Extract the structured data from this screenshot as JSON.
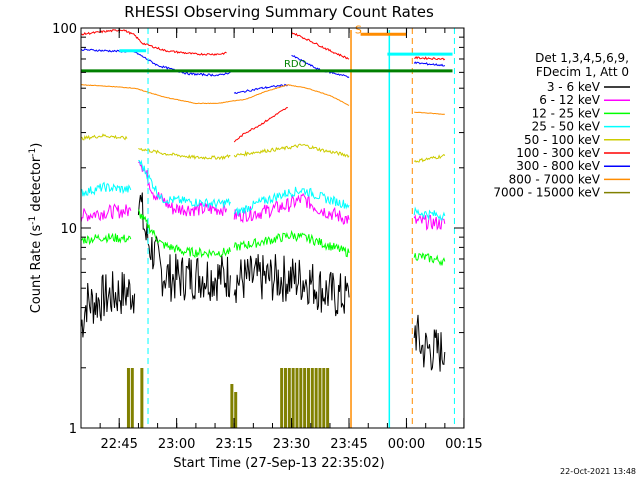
{
  "chart_data": {
    "type": "line",
    "title": "RHESSI Observing Summary Count Rates",
    "xlabel": "Start Time (27-Sep-13 22:35:02)",
    "ylabel_main": "Count Rate (s",
    "ylabel_sup": "-1",
    "ylabel_end": " detector",
    "ylabel_sup2": "-1",
    "ylabel_close": ")",
    "yscale": "log",
    "ylim": [
      1,
      100
    ],
    "xlim": [
      "22:35:02",
      "00:15:00"
    ],
    "x_ticks": [
      {
        "t": "22:45",
        "m": 9.97
      },
      {
        "t": "23:00",
        "m": 24.97
      },
      {
        "t": "23:15",
        "m": 39.97
      },
      {
        "t": "23:30",
        "m": 54.97
      },
      {
        "t": "23:45",
        "m": 69.97
      },
      {
        "t": "00:00",
        "m": 84.97
      },
      {
        "t": "00:15",
        "m": 99.97
      }
    ],
    "y_ticks": [
      {
        "label": "1",
        "v": 1
      },
      {
        "label": "10",
        "v": 10
      },
      {
        "label": "100",
        "v": 100
      }
    ],
    "legend_header_1": "Det 1,3,4,5,6,9,",
    "legend_header_2": "FDecim 1, Att 0",
    "legend_position": "right",
    "series": [
      {
        "name": "3 - 6 keV",
        "color": "#000000",
        "noise": 0.35,
        "points": [
          [
            0,
            3.2
          ],
          [
            1.5,
            4.3
          ],
          [
            3,
            4.2
          ],
          [
            6,
            4.5
          ],
          [
            10,
            4.7
          ],
          [
            13,
            4.8
          ],
          [
            14,
            4.7
          ],
          [
            14.5,
            null
          ],
          [
            15,
            15
          ],
          [
            17,
            9
          ],
          [
            19,
            7.5
          ],
          [
            21,
            6
          ],
          [
            24,
            5.6
          ],
          [
            30,
            5.8
          ],
          [
            36,
            5.7
          ],
          [
            39,
            5.8
          ],
          [
            39.5,
            null
          ],
          [
            40,
            5.5
          ],
          [
            46,
            5.6
          ],
          [
            54,
            5.6
          ],
          [
            59,
            5.5
          ],
          [
            63,
            4.9
          ],
          [
            66,
            4.6
          ],
          [
            70,
            4.5
          ],
          [
            70.5,
            null
          ],
          [
            76,
            null
          ],
          [
            87,
            3.2
          ],
          [
            89,
            2.5
          ],
          [
            95,
            2.4
          ],
          [
            97.3,
            null
          ]
        ]
      },
      {
        "name": "6 - 12 keV",
        "color": "#ff00ff",
        "noise": 0.16,
        "points": [
          [
            0,
            11.5
          ],
          [
            6,
            12
          ],
          [
            13,
            12.2
          ],
          [
            14.5,
            null
          ],
          [
            15,
            23
          ],
          [
            19,
            15
          ],
          [
            24,
            12.5
          ],
          [
            31,
            12.4
          ],
          [
            38,
            12.5
          ],
          [
            39.5,
            null
          ],
          [
            40,
            11.5
          ],
          [
            47,
            12
          ],
          [
            54,
            13
          ],
          [
            58,
            14
          ],
          [
            62,
            12.5
          ],
          [
            67,
            11.5
          ],
          [
            70,
            11
          ],
          [
            70.5,
            null
          ],
          [
            87,
            10.8
          ],
          [
            95,
            10.5
          ],
          [
            97.3,
            null
          ]
        ]
      },
      {
        "name": "12 - 25 keV",
        "color": "#00ff00",
        "noise": 0.12,
        "points": [
          [
            0,
            8.7
          ],
          [
            6,
            9
          ],
          [
            13,
            8.8
          ],
          [
            14.5,
            null
          ],
          [
            15,
            12
          ],
          [
            21,
            8.3
          ],
          [
            27,
            7.6
          ],
          [
            33,
            7.5
          ],
          [
            39,
            7.6
          ],
          [
            39.5,
            null
          ],
          [
            40,
            8
          ],
          [
            47,
            8.5
          ],
          [
            55,
            9.2
          ],
          [
            60,
            8.8
          ],
          [
            66,
            8
          ],
          [
            70,
            7.5
          ],
          [
            70.5,
            null
          ],
          [
            87,
            7.3
          ],
          [
            95,
            6.8
          ],
          [
            97.3,
            null
          ]
        ]
      },
      {
        "name": "25 - 50 keV",
        "color": "#00ffff",
        "noise": 0.12,
        "points": [
          [
            0,
            15
          ],
          [
            6,
            16
          ],
          [
            13,
            15.5
          ],
          [
            14.5,
            null
          ],
          [
            15,
            22
          ],
          [
            21,
            14
          ],
          [
            29,
            13.5
          ],
          [
            36,
            13.2
          ],
          [
            39,
            13.5
          ],
          [
            39.5,
            null
          ],
          [
            40,
            11.8
          ],
          [
            47,
            13.5
          ],
          [
            54,
            15
          ],
          [
            58,
            15.5
          ],
          [
            64,
            14
          ],
          [
            70,
            13
          ],
          [
            70.5,
            null
          ],
          [
            87,
            12
          ],
          [
            95,
            11.5
          ],
          [
            97.3,
            null
          ]
        ]
      },
      {
        "name": "50 - 100 keV",
        "color": "#cccc00",
        "noise": 0.06,
        "points": [
          [
            0,
            28
          ],
          [
            6,
            29
          ],
          [
            12,
            28
          ],
          [
            14.5,
            null
          ],
          [
            15,
            25
          ],
          [
            22,
            23.5
          ],
          [
            30,
            22.5
          ],
          [
            37,
            22.5
          ],
          [
            39,
            23
          ],
          [
            39.5,
            null
          ],
          [
            40,
            23
          ],
          [
            46,
            24
          ],
          [
            53,
            25
          ],
          [
            58,
            26
          ],
          [
            63,
            24.5
          ],
          [
            70,
            23
          ],
          [
            70.5,
            null
          ],
          [
            87,
            21.5
          ],
          [
            95,
            23
          ],
          [
            97.3,
            null
          ]
        ]
      },
      {
        "name": "100 - 300 keV",
        "color": "#ff0000",
        "noise": 0.04,
        "points": [
          [
            0,
            93
          ],
          [
            6,
            96
          ],
          [
            11,
            98
          ],
          [
            14,
            92
          ],
          [
            16,
            84
          ],
          [
            22,
            77
          ],
          [
            30,
            74
          ],
          [
            36,
            74
          ],
          [
            38,
            75
          ],
          [
            39.5,
            null
          ],
          [
            40,
            27
          ],
          [
            43,
            30
          ],
          [
            47,
            33
          ],
          [
            52,
            38
          ],
          [
            54,
            40
          ],
          [
            54.5,
            null
          ],
          [
            55,
            95
          ],
          [
            60,
            86
          ],
          [
            65,
            77
          ],
          [
            70,
            70
          ],
          [
            70.5,
            null
          ],
          [
            87,
            71
          ],
          [
            95,
            70
          ],
          [
            97.3,
            null
          ]
        ]
      },
      {
        "name": "300 - 800 keV",
        "color": "#0000ff",
        "noise": 0.04,
        "points": [
          [
            0,
            78
          ],
          [
            6,
            77
          ],
          [
            14,
            76
          ],
          [
            20,
            65
          ],
          [
            28,
            59
          ],
          [
            36,
            58
          ],
          [
            39,
            60
          ],
          [
            39.5,
            null
          ],
          [
            40,
            47
          ],
          [
            47,
            50
          ],
          [
            54,
            52
          ],
          [
            54.5,
            null
          ],
          [
            55,
            73
          ],
          [
            62,
            62
          ],
          [
            70,
            57
          ],
          [
            70.5,
            null
          ],
          [
            87,
            67
          ],
          [
            95,
            65
          ],
          [
            97.3,
            null
          ]
        ]
      },
      {
        "name": "800 - 7000 keV",
        "color": "#ff8c00",
        "noise": 0.015,
        "points": [
          [
            0,
            52
          ],
          [
            8,
            51
          ],
          [
            14,
            50
          ],
          [
            22,
            45
          ],
          [
            30,
            42
          ],
          [
            36,
            42
          ],
          [
            39,
            43
          ],
          [
            43,
            44
          ],
          [
            48,
            48
          ],
          [
            54,
            52
          ],
          [
            59,
            50
          ],
          [
            65,
            46
          ],
          [
            70,
            41
          ],
          [
            70.5,
            null
          ],
          [
            87,
            38
          ],
          [
            95,
            37
          ],
          [
            97.3,
            null
          ]
        ]
      },
      {
        "name": "7000 - 15000 keV",
        "color": "#808000",
        "noise": 0,
        "points": [
          [
            0,
            null
          ]
        ]
      }
    ],
    "flag_bars": [
      {
        "label": "RDO",
        "color": "#008000",
        "value": 61,
        "x": [
          0,
          97
        ]
      },
      {
        "label": "S",
        "color": "#ff8c00",
        "value": 93,
        "x": [
          73,
          85
        ]
      },
      {
        "label": "",
        "color": "#00ffff",
        "value": 77,
        "x": [
          10,
          17
        ]
      },
      {
        "label": "",
        "color": "#00ffff",
        "value": 74,
        "x": [
          80,
          97
        ]
      }
    ],
    "flag_labels": [
      {
        "text": "RDO"
      },
      {
        "text": "S"
      }
    ],
    "gaps": [
      {
        "start": 70.5,
        "end": 87,
        "color": "#ff8c00"
      },
      {
        "start": 80.5,
        "end": 87,
        "color": "#00ffff"
      }
    ],
    "saa_lines": [
      {
        "x": 17.5,
        "color": "#00ffff"
      },
      {
        "x": 86.5,
        "color": "#ff8c00"
      },
      {
        "x": 97.5,
        "color": "#00ffff"
      }
    ],
    "footer_date": "22-Oct-2021 13:48"
  }
}
